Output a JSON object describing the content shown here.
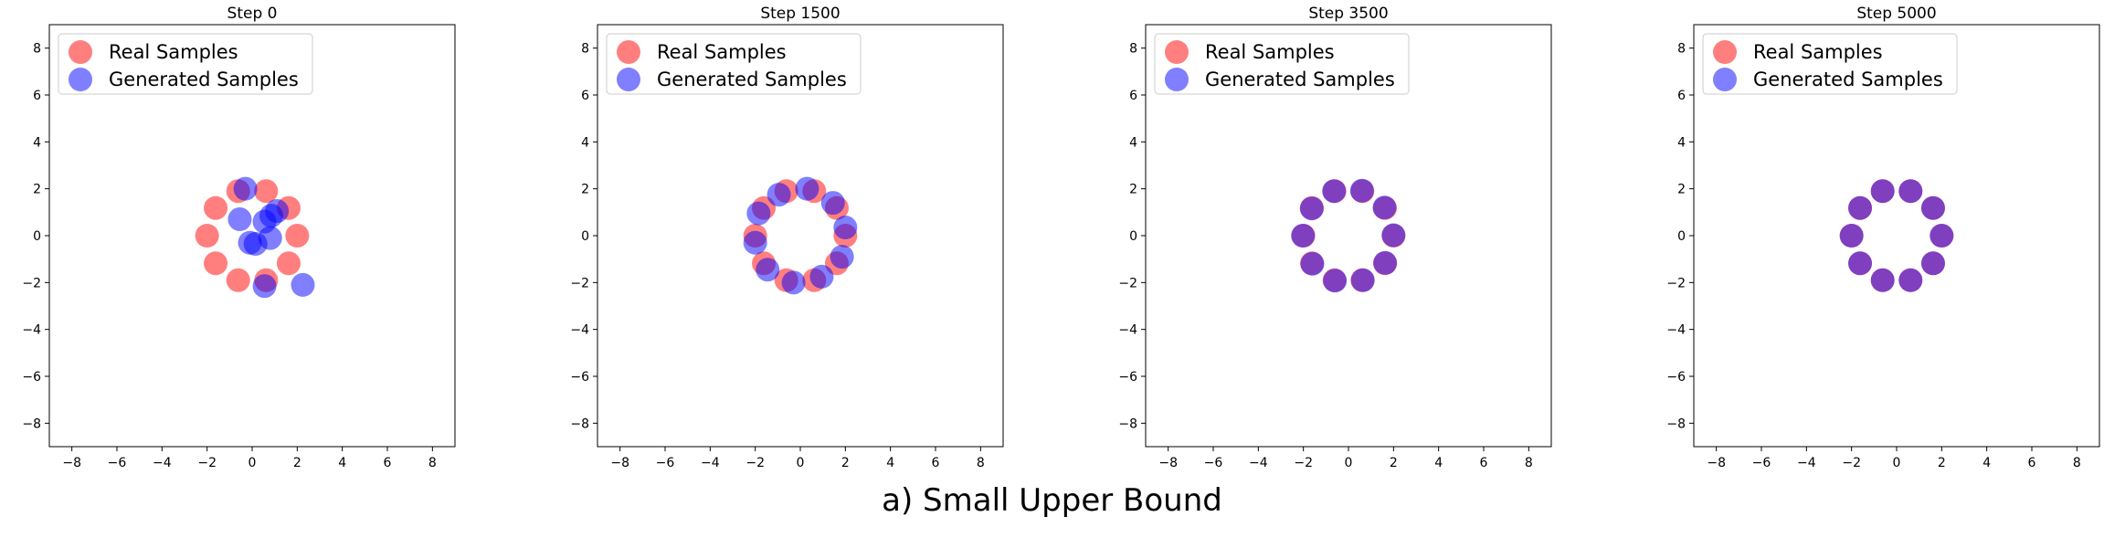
{
  "figure": {
    "caption": "a) Small Upper Bound"
  },
  "colors": {
    "real": "#ff0000",
    "generated": "#0000ff"
  },
  "chart_data": [
    {
      "type": "scatter",
      "title": "Step 0",
      "xlim": [
        -9,
        9
      ],
      "ylim": [
        -9,
        9
      ],
      "xticks": [
        -8,
        -6,
        -4,
        -2,
        0,
        2,
        4,
        6,
        8
      ],
      "yticks": [
        -8,
        -6,
        -4,
        -2,
        0,
        2,
        4,
        6,
        8
      ],
      "grid": false,
      "legend_position": "top-left",
      "series": [
        {
          "name": "Real Samples",
          "color": "#ff0000",
          "opacity": 0.5,
          "points": [
            [
              2,
              0
            ],
            [
              1.62,
              1.18
            ],
            [
              0.62,
              1.9
            ],
            [
              -0.62,
              1.9
            ],
            [
              -1.62,
              1.18
            ],
            [
              -2,
              0
            ],
            [
              -1.62,
              -1.18
            ],
            [
              -0.62,
              -1.9
            ],
            [
              0.62,
              -1.9
            ],
            [
              1.62,
              -1.18
            ]
          ]
        },
        {
          "name": "Generated Samples",
          "color": "#0000ff",
          "opacity": 0.5,
          "points": [
            [
              -0.3,
              2.0
            ],
            [
              -0.55,
              0.7
            ],
            [
              0.55,
              0.6
            ],
            [
              0.85,
              0.85
            ],
            [
              1.1,
              1.05
            ],
            [
              0.8,
              -0.1
            ],
            [
              -0.1,
              -0.3
            ],
            [
              0.15,
              -0.35
            ],
            [
              0.55,
              -2.15
            ],
            [
              2.25,
              -2.1
            ]
          ]
        }
      ]
    },
    {
      "type": "scatter",
      "title": "Step 1500",
      "xlim": [
        -9,
        9
      ],
      "ylim": [
        -9,
        9
      ],
      "xticks": [
        -8,
        -6,
        -4,
        -2,
        0,
        2,
        4,
        6,
        8
      ],
      "yticks": [
        -8,
        -6,
        -4,
        -2,
        0,
        2,
        4,
        6,
        8
      ],
      "grid": false,
      "legend_position": "top-left",
      "series": [
        {
          "name": "Real Samples",
          "color": "#ff0000",
          "opacity": 0.5,
          "points": [
            [
              2,
              0
            ],
            [
              1.62,
              1.18
            ],
            [
              0.62,
              1.9
            ],
            [
              -0.62,
              1.9
            ],
            [
              -1.62,
              1.18
            ],
            [
              -2,
              0
            ],
            [
              -1.62,
              -1.18
            ],
            [
              -0.62,
              -1.9
            ],
            [
              0.62,
              -1.9
            ],
            [
              1.62,
              -1.18
            ]
          ]
        },
        {
          "name": "Generated Samples",
          "color": "#0000ff",
          "opacity": 0.5,
          "points": [
            [
              2.0,
              0.35
            ],
            [
              1.45,
              1.4
            ],
            [
              0.3,
              2.0
            ],
            [
              -0.95,
              1.75
            ],
            [
              -1.85,
              0.95
            ],
            [
              -2.0,
              -0.3
            ],
            [
              -1.45,
              -1.45
            ],
            [
              -0.3,
              -2.0
            ],
            [
              0.95,
              -1.75
            ],
            [
              1.85,
              -0.9
            ]
          ]
        }
      ]
    },
    {
      "type": "scatter",
      "title": "Step 3500",
      "xlim": [
        -9,
        9
      ],
      "ylim": [
        -9,
        9
      ],
      "xticks": [
        -8,
        -6,
        -4,
        -2,
        0,
        2,
        4,
        6,
        8
      ],
      "yticks": [
        -8,
        -6,
        -4,
        -2,
        0,
        2,
        4,
        6,
        8
      ],
      "grid": false,
      "legend_position": "top-left",
      "series": [
        {
          "name": "Real Samples",
          "color": "#ff0000",
          "opacity": 0.5,
          "points": [
            [
              2,
              0
            ],
            [
              1.62,
              1.18
            ],
            [
              0.62,
              1.9
            ],
            [
              -0.62,
              1.9
            ],
            [
              -1.62,
              1.18
            ],
            [
              -2,
              0
            ],
            [
              -1.62,
              -1.18
            ],
            [
              -0.62,
              -1.9
            ],
            [
              0.62,
              -1.9
            ],
            [
              1.62,
              -1.18
            ]
          ]
        },
        {
          "name": "Generated Samples",
          "color": "#0000ff",
          "opacity": 0.5,
          "points": [
            [
              2.0,
              0.02
            ],
            [
              1.6,
              1.2
            ],
            [
              0.6,
              1.92
            ],
            [
              -0.64,
              1.9
            ],
            [
              -1.63,
              1.16
            ],
            [
              -2.02,
              0.0
            ],
            [
              -1.6,
              -1.2
            ],
            [
              -0.6,
              -1.92
            ],
            [
              0.64,
              -1.9
            ],
            [
              1.63,
              -1.16
            ]
          ]
        }
      ]
    },
    {
      "type": "scatter",
      "title": "Step 5000",
      "xlim": [
        -9,
        9
      ],
      "ylim": [
        -9,
        9
      ],
      "xticks": [
        -8,
        -6,
        -4,
        -2,
        0,
        2,
        4,
        6,
        8
      ],
      "yticks": [
        -8,
        -6,
        -4,
        -2,
        0,
        2,
        4,
        6,
        8
      ],
      "grid": false,
      "legend_position": "top-left",
      "series": [
        {
          "name": "Real Samples",
          "color": "#ff0000",
          "opacity": 0.5,
          "points": [
            [
              2,
              0
            ],
            [
              1.62,
              1.18
            ],
            [
              0.62,
              1.9
            ],
            [
              -0.62,
              1.9
            ],
            [
              -1.62,
              1.18
            ],
            [
              -2,
              0
            ],
            [
              -1.62,
              -1.18
            ],
            [
              -0.62,
              -1.9
            ],
            [
              0.62,
              -1.9
            ],
            [
              1.62,
              -1.18
            ]
          ]
        },
        {
          "name": "Generated Samples",
          "color": "#0000ff",
          "opacity": 0.5,
          "points": [
            [
              2.0,
              0.0
            ],
            [
              1.62,
              1.18
            ],
            [
              0.62,
              1.9
            ],
            [
              -0.62,
              1.9
            ],
            [
              -1.62,
              1.18
            ],
            [
              -2.0,
              0.0
            ],
            [
              -1.62,
              -1.18
            ],
            [
              -0.62,
              -1.9
            ],
            [
              0.62,
              -1.9
            ],
            [
              1.62,
              -1.18
            ]
          ]
        }
      ]
    }
  ]
}
